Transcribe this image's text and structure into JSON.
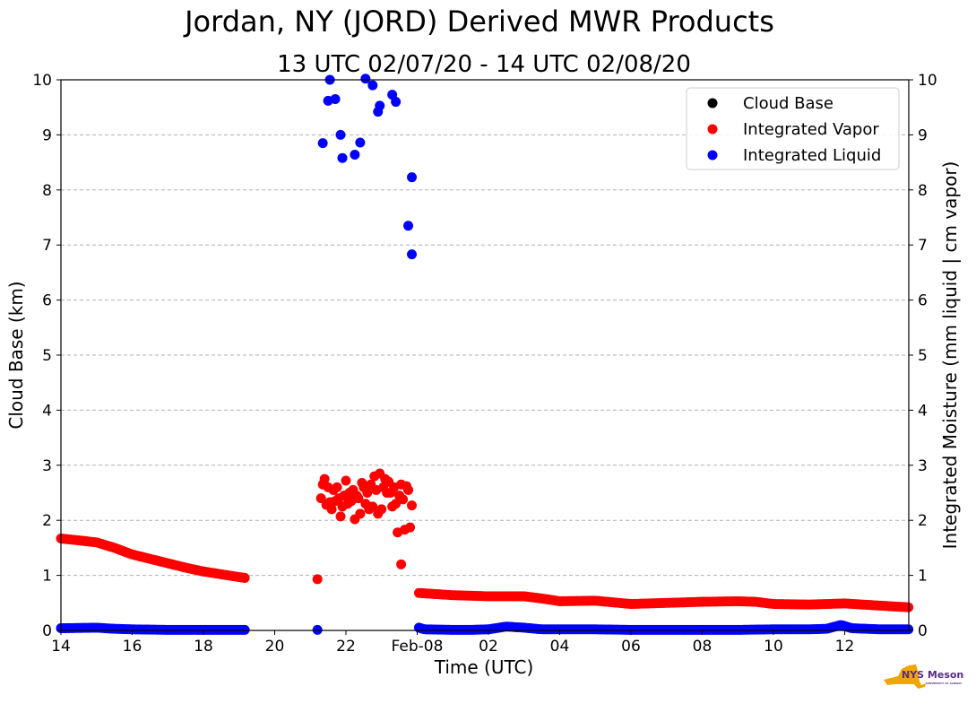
{
  "chart_data": {
    "type": "scatter",
    "title": "Jordan, NY (JORD) Derived MWR Products",
    "subtitle": "13 UTC 02/07/20 - 14 UTC 02/08/20",
    "xlabel": "Time (UTC)",
    "ylabel": "Cloud Base (km)",
    "ylabel_right": "Integrated Moisture (mm liquid | cm vapor)",
    "xlim": [
      14,
      37.8
    ],
    "ylim": [
      0,
      10
    ],
    "ylim_right": [
      0,
      10
    ],
    "grid": true,
    "legend_position": "top-right",
    "x_ticks": [
      {
        "value": 14,
        "label": "14"
      },
      {
        "value": 16,
        "label": "16"
      },
      {
        "value": 18,
        "label": "18"
      },
      {
        "value": 20,
        "label": "20"
      },
      {
        "value": 22,
        "label": "22"
      },
      {
        "value": 24,
        "label": "Feb-08"
      },
      {
        "value": 26,
        "label": "02"
      },
      {
        "value": 28,
        "label": "04"
      },
      {
        "value": 30,
        "label": "06"
      },
      {
        "value": 32,
        "label": "08"
      },
      {
        "value": 34,
        "label": "10"
      },
      {
        "value": 36,
        "label": "12"
      }
    ],
    "y_ticks": [
      "0",
      "1",
      "2",
      "3",
      "4",
      "5",
      "6",
      "7",
      "8",
      "9",
      "10"
    ],
    "series": [
      {
        "name": "Cloud Base",
        "color": "#000000",
        "points": []
      },
      {
        "name": "Integrated Vapor",
        "color": "#ff0000",
        "segments": [
          {
            "x": [
              14.0,
              15.0,
              15.5,
              16.0,
              16.5,
              17.0,
              17.5,
              18.0,
              18.5,
              19.2
            ],
            "y": [
              1.67,
              1.6,
              1.5,
              1.38,
              1.3,
              1.22,
              1.14,
              1.07,
              1.02,
              0.95
            ]
          },
          {
            "x": [
              24.05,
              25.0,
              26.0,
              27.0,
              27.5,
              28.0,
              29.0,
              30.0,
              31.0,
              32.0,
              33.0,
              33.5,
              34.0,
              35.0,
              36.0,
              37.0,
              37.8
            ],
            "y": [
              0.68,
              0.64,
              0.62,
              0.62,
              0.58,
              0.53,
              0.54,
              0.48,
              0.5,
              0.52,
              0.53,
              0.52,
              0.48,
              0.47,
              0.49,
              0.45,
              0.42
            ]
          }
        ],
        "points": [
          [
            21.2,
            0.93
          ],
          [
            21.3,
            2.4
          ],
          [
            21.35,
            2.65
          ],
          [
            21.4,
            2.75
          ],
          [
            21.45,
            2.28
          ],
          [
            21.5,
            2.6
          ],
          [
            21.55,
            2.33
          ],
          [
            21.6,
            2.2
          ],
          [
            21.65,
            2.55
          ],
          [
            21.7,
            2.35
          ],
          [
            21.75,
            2.6
          ],
          [
            21.8,
            2.4
          ],
          [
            21.85,
            2.07
          ],
          [
            21.9,
            2.25
          ],
          [
            21.95,
            2.45
          ],
          [
            22.0,
            2.72
          ],
          [
            22.05,
            2.3
          ],
          [
            22.1,
            2.5
          ],
          [
            22.15,
            2.35
          ],
          [
            22.2,
            2.55
          ],
          [
            22.25,
            2.02
          ],
          [
            22.3,
            2.45
          ],
          [
            22.35,
            2.4
          ],
          [
            22.4,
            2.12
          ],
          [
            22.45,
            2.68
          ],
          [
            22.5,
            2.6
          ],
          [
            22.55,
            2.3
          ],
          [
            22.6,
            2.5
          ],
          [
            22.65,
            2.2
          ],
          [
            22.7,
            2.65
          ],
          [
            22.75,
            2.25
          ],
          [
            22.8,
            2.8
          ],
          [
            22.85,
            2.55
          ],
          [
            22.9,
            2.12
          ],
          [
            22.95,
            2.85
          ],
          [
            23.0,
            2.2
          ],
          [
            23.05,
            2.6
          ],
          [
            23.1,
            2.75
          ],
          [
            23.15,
            2.5
          ],
          [
            23.2,
            2.7
          ],
          [
            23.25,
            2.5
          ],
          [
            23.3,
            2.25
          ],
          [
            23.35,
            2.6
          ],
          [
            23.4,
            2.3
          ],
          [
            23.45,
            1.78
          ],
          [
            23.5,
            2.45
          ],
          [
            23.55,
            2.65
          ],
          [
            23.6,
            2.38
          ],
          [
            23.65,
            1.83
          ],
          [
            23.7,
            2.62
          ],
          [
            23.75,
            2.55
          ],
          [
            23.8,
            1.87
          ],
          [
            23.85,
            2.27
          ],
          [
            23.55,
            1.2
          ]
        ]
      },
      {
        "name": "Integrated Liquid",
        "color": "#0000ff",
        "segments": [
          {
            "x": [
              14.0,
              15.0,
              15.5,
              16.0,
              17.0,
              18.0,
              19.0,
              19.2
            ],
            "y": [
              0.04,
              0.05,
              0.03,
              0.02,
              0.01,
              0.01,
              0.01,
              0.01
            ]
          },
          {
            "x": [
              24.05,
              24.2,
              25.0,
              25.5,
              26.0,
              26.5,
              27.0,
              27.5,
              28.0,
              29.0,
              30.0,
              31.0,
              32.0,
              33.0,
              34.0,
              35.0,
              35.5,
              35.9,
              36.2,
              37.0,
              37.8
            ],
            "y": [
              0.05,
              0.02,
              0.01,
              0.01,
              0.02,
              0.07,
              0.05,
              0.02,
              0.02,
              0.02,
              0.01,
              0.01,
              0.01,
              0.01,
              0.02,
              0.02,
              0.03,
              0.1,
              0.04,
              0.02,
              0.02
            ]
          }
        ],
        "points": [
          [
            21.2,
            0.01
          ],
          [
            21.35,
            8.85
          ],
          [
            21.5,
            9.62
          ],
          [
            21.55,
            10.0
          ],
          [
            21.7,
            9.65
          ],
          [
            21.85,
            9.0
          ],
          [
            21.9,
            8.58
          ],
          [
            22.25,
            8.64
          ],
          [
            22.4,
            8.86
          ],
          [
            22.55,
            10.02
          ],
          [
            22.75,
            9.9
          ],
          [
            22.9,
            9.42
          ],
          [
            22.95,
            9.53
          ],
          [
            23.3,
            9.73
          ],
          [
            23.4,
            9.6
          ],
          [
            23.75,
            7.35
          ],
          [
            23.85,
            6.83
          ],
          [
            23.85,
            8.23
          ]
        ]
      }
    ]
  },
  "logo": {
    "text": "NYS Mesonet",
    "subtext": "UNIVERSITY AT ALBANY",
    "primary_color": "#f0a500",
    "secondary_color": "#5b2c83"
  }
}
